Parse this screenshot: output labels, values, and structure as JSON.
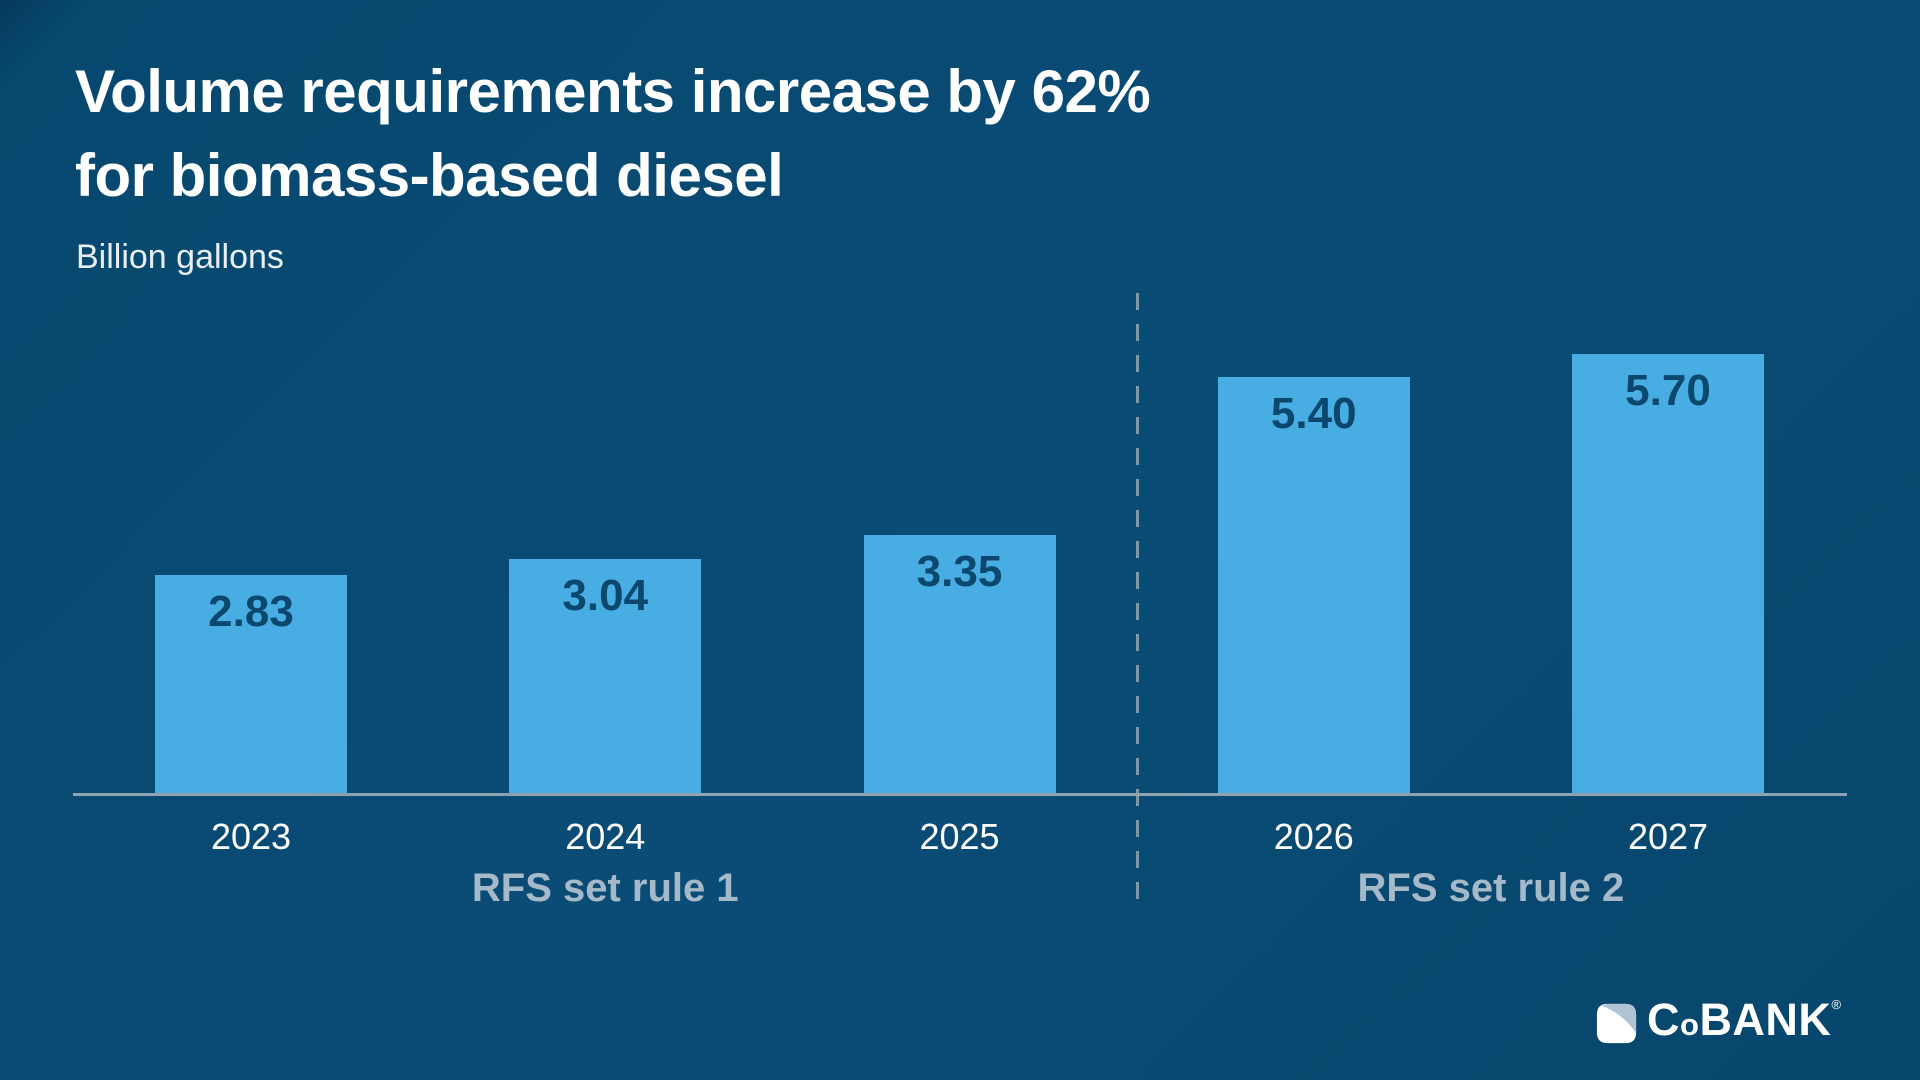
{
  "header": {
    "title_line1": "Volume requirements increase by 62%",
    "title_line2": "for biomass-based diesel",
    "subtitle": "Billion gallons"
  },
  "chart_data": {
    "type": "bar",
    "title": "Volume requirements increase by 62% for biomass-based diesel",
    "ylabel": "Billion gallons",
    "xlabel": "",
    "categories": [
      "2023",
      "2024",
      "2025",
      "2026",
      "2027"
    ],
    "values": [
      2.83,
      3.04,
      3.35,
      5.4,
      5.7
    ],
    "value_labels": [
      "2.83",
      "3.04",
      "3.35",
      "5.40",
      "5.70"
    ],
    "groups": [
      {
        "label": "RFS set rule 1",
        "category_indices": [
          0,
          1,
          2
        ]
      },
      {
        "label": "RFS set rule 2",
        "category_indices": [
          3,
          4
        ]
      }
    ],
    "divider_between": [
      "2025",
      "2026"
    ],
    "ylim": [
      0,
      6
    ],
    "grid": false,
    "legend": false,
    "colors": {
      "background": "#07486F",
      "bar": "#47ADE3",
      "bar_value_text": "#0C486E",
      "axis_line": "#8EA2B0",
      "divider": "#7E97A9",
      "tick_label": "#FFFFFF",
      "group_label": "#A6B9C8",
      "title": "#FFFFFF"
    }
  },
  "logo": {
    "part_c": "C",
    "part_o": "o",
    "part_bank": "BANK",
    "registered": "®"
  }
}
